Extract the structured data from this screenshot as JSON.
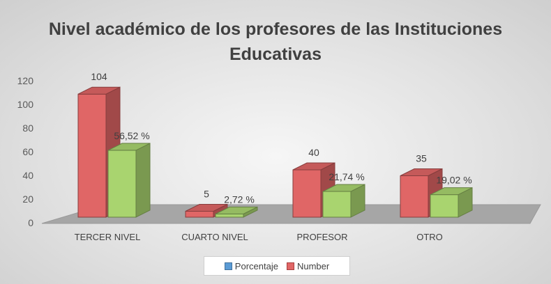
{
  "chart_data": {
    "type": "bar",
    "title_lines": [
      "Nivel académico de los profesores de las Instituciones",
      "Educativas"
    ],
    "categories": [
      "TERCER NIVEL",
      "CUARTO NIVEL",
      "PROFESOR",
      "OTRO"
    ],
    "series": [
      {
        "name": "Number",
        "values": [
          104,
          5,
          40,
          35
        ],
        "labels": [
          "104",
          "5",
          "40",
          "35"
        ],
        "color": "#e06666"
      },
      {
        "name": "Porcentaje",
        "values": [
          56.52,
          2.72,
          21.74,
          19.02
        ],
        "labels": [
          "56,52 %",
          "2,72 %",
          "21,74 %",
          "19,02 %"
        ],
        "color": "#a9d46f"
      }
    ],
    "legend_entries": [
      {
        "name": "Porcentaje",
        "color": "#5b9bd5"
      },
      {
        "name": "Number",
        "color": "#e06666"
      }
    ],
    "ylim": [
      0,
      120
    ],
    "yticks": [
      0,
      20,
      40,
      60,
      80,
      100,
      120
    ],
    "legend_position": "bottom",
    "grid": false,
    "style": "3d-clustered-column"
  }
}
